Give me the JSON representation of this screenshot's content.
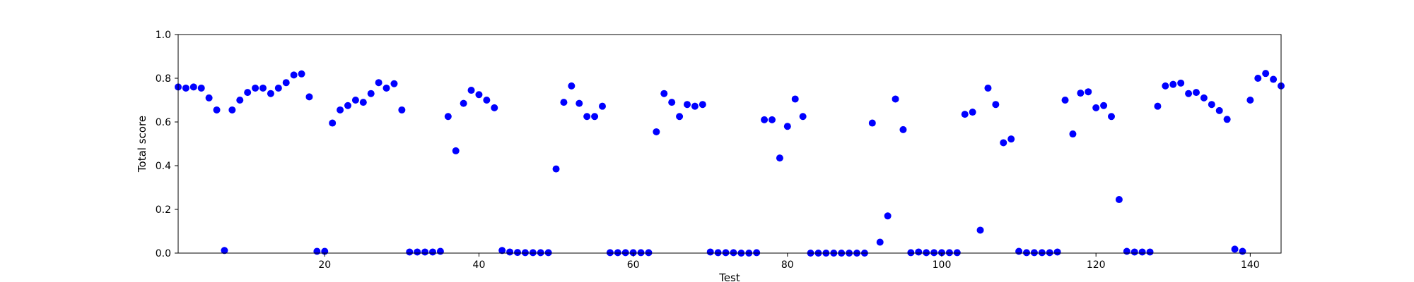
{
  "chart_data": {
    "type": "scatter",
    "title": "",
    "xlabel": "Test",
    "ylabel": "Total score",
    "xlim": [
      1,
      144
    ],
    "ylim": [
      0.0,
      1.0
    ],
    "xticks": [
      20,
      40,
      60,
      80,
      100,
      120,
      140
    ],
    "xtick_labels": [
      "20",
      "40",
      "60",
      "80",
      "100",
      "120",
      "140"
    ],
    "yticks": [
      0.0,
      0.2,
      0.4,
      0.6,
      0.8,
      1.0
    ],
    "ytick_labels": [
      "0.0",
      "0.2",
      "0.4",
      "0.6",
      "0.8",
      "1.0"
    ],
    "grid": false,
    "marker_color": "#0000ff",
    "series": [
      {
        "name": "Total score",
        "x": [
          1,
          2,
          3,
          4,
          5,
          6,
          7,
          8,
          9,
          10,
          11,
          12,
          13,
          14,
          15,
          16,
          17,
          18,
          19,
          20,
          21,
          22,
          23,
          24,
          25,
          26,
          27,
          28,
          29,
          30,
          31,
          32,
          33,
          34,
          35,
          36,
          37,
          38,
          39,
          40,
          41,
          42,
          43,
          44,
          45,
          46,
          47,
          48,
          49,
          50,
          51,
          52,
          53,
          54,
          55,
          56,
          57,
          58,
          59,
          60,
          61,
          62,
          63,
          64,
          65,
          66,
          67,
          68,
          69,
          70,
          71,
          72,
          73,
          74,
          75,
          76,
          77,
          78,
          79,
          80,
          81,
          82,
          83,
          84,
          85,
          86,
          87,
          88,
          89,
          90,
          91,
          92,
          93,
          94,
          95,
          96,
          97,
          98,
          99,
          100,
          101,
          102,
          103,
          104,
          105,
          106,
          107,
          108,
          109,
          110,
          111,
          112,
          113,
          114,
          115,
          116,
          117,
          118,
          119,
          120,
          121,
          122,
          123,
          124,
          125,
          126,
          127,
          128,
          129,
          130,
          131,
          132,
          133,
          134,
          135,
          136,
          137,
          138,
          139,
          140,
          141,
          142,
          143,
          144
        ],
        "y": [
          0.76,
          0.755,
          0.76,
          0.755,
          0.71,
          0.655,
          0.012,
          0.655,
          0.7,
          0.735,
          0.755,
          0.755,
          0.73,
          0.755,
          0.78,
          0.815,
          0.82,
          0.715,
          0.008,
          0.008,
          0.595,
          0.655,
          0.675,
          0.7,
          0.69,
          0.73,
          0.78,
          0.755,
          0.775,
          0.655,
          0.005,
          0.005,
          0.005,
          0.005,
          0.008,
          0.625,
          0.468,
          0.685,
          0.745,
          0.725,
          0.7,
          0.665,
          0.012,
          0.005,
          0.003,
          0.002,
          0.002,
          0.002,
          0.002,
          0.385,
          0.69,
          0.765,
          0.685,
          0.625,
          0.625,
          0.672,
          0.002,
          0.002,
          0.002,
          0.002,
          0.002,
          0.002,
          0.555,
          0.73,
          0.69,
          0.625,
          0.68,
          0.672,
          0.68,
          0.005,
          0.002,
          0.002,
          0.002,
          0.0,
          0.0,
          0.002,
          0.61,
          0.61,
          0.435,
          0.58,
          0.705,
          0.625,
          0.0,
          0.0,
          0.0,
          0.0,
          0.0,
          0.0,
          0.0,
          0.0,
          0.595,
          0.05,
          0.17,
          0.705,
          0.565,
          0.002,
          0.005,
          0.002,
          0.002,
          0.002,
          0.002,
          0.002,
          0.635,
          0.645,
          0.105,
          0.755,
          0.68,
          0.505,
          0.522,
          0.008,
          0.002,
          0.002,
          0.002,
          0.002,
          0.005,
          0.7,
          0.545,
          0.732,
          0.738,
          0.665,
          0.675,
          0.625,
          0.245,
          0.008,
          0.005,
          0.005,
          0.005,
          0.672,
          0.765,
          0.772,
          0.778,
          0.73,
          0.735,
          0.71,
          0.68,
          0.652,
          0.612,
          0.018,
          0.008,
          0.7,
          0.8,
          0.822,
          0.795,
          0.765
        ]
      }
    ]
  }
}
